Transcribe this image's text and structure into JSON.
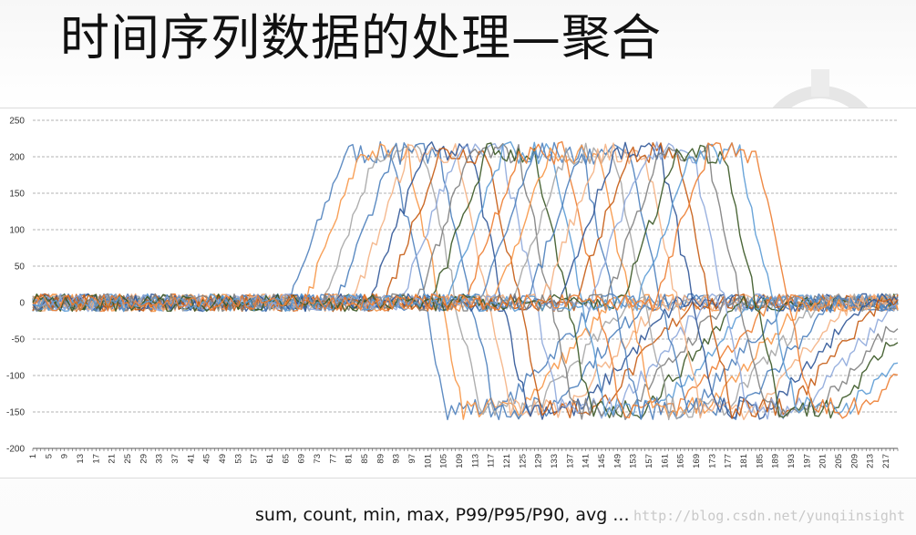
{
  "page": {
    "title": "时间序列数据的处理—聚合",
    "caption": "sum, count, min, max, P99/P95/P90, avg ...",
    "watermark": "http://blog.csdn.net/yunqiinsight"
  },
  "colors": {
    "grid": "#9a9a9a",
    "axis": "#595959",
    "series_palette": [
      "#4f81bd",
      "#f79646",
      "#a5a5a5",
      "#4a7ebb",
      "#f4b183",
      "#2f5597",
      "#c55a11",
      "#8ea9db",
      "#7f7f7f",
      "#385723",
      "#5b9bd5",
      "#ed7d31"
    ]
  },
  "chart_data": {
    "type": "line",
    "title": "",
    "xlabel": "",
    "ylabel": "",
    "ylim": [
      -200,
      250
    ],
    "y_ticks": [
      250,
      200,
      150,
      100,
      50,
      0,
      -50,
      -100,
      -150,
      -200
    ],
    "x_range": [
      1,
      220
    ],
    "x_ticks": [
      1,
      5,
      9,
      13,
      17,
      21,
      25,
      29,
      33,
      37,
      41,
      45,
      49,
      53,
      57,
      61,
      65,
      69,
      73,
      77,
      81,
      85,
      89,
      93,
      97,
      101,
      105,
      109,
      113,
      117,
      121,
      125,
      129,
      133,
      137,
      141,
      145,
      149,
      153,
      157,
      161,
      165,
      169,
      173,
      177,
      181,
      185,
      189,
      193,
      197,
      201,
      205,
      209,
      213,
      217
    ],
    "grid": "horizontal-dashed",
    "legend": "none",
    "series_count": 24,
    "series_profile": "each series is noise around 0, then rises to a peak near 200-220, falls to a trough near -150, then returns to 0; successive series are shifted right by about 4 samples",
    "first_rise_start_x": 66,
    "shift_per_series": 4,
    "peak_value": 205,
    "trough_value": -145,
    "noise_amplitude": 12
  }
}
